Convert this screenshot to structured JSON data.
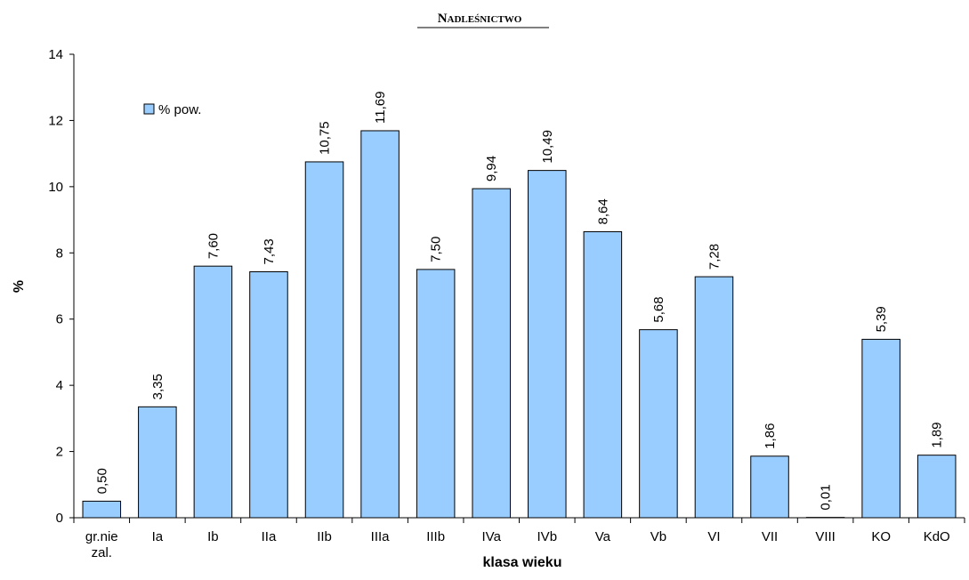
{
  "chart_data": {
    "type": "bar",
    "title": "Nadleśnictwo",
    "xlabel": "klasa wieku",
    "ylabel": "%",
    "ylim": [
      0,
      14
    ],
    "yticks": [
      "0",
      "2",
      "4",
      "6",
      "8",
      "10",
      "12",
      "14"
    ],
    "categories": [
      [
        "gr.nie",
        "zal."
      ],
      [
        "Ia"
      ],
      [
        "Ib"
      ],
      [
        "IIa"
      ],
      [
        "IIb"
      ],
      [
        "IIIa"
      ],
      [
        "IIIb"
      ],
      [
        "IVa"
      ],
      [
        "IVb"
      ],
      [
        "Va"
      ],
      [
        "Vb"
      ],
      [
        "VI"
      ],
      [
        "VII"
      ],
      [
        "VIII"
      ],
      [
        "KO"
      ],
      [
        "KdO"
      ]
    ],
    "series": [
      {
        "name": "% pow.",
        "values": [
          0.5,
          3.35,
          7.6,
          7.43,
          10.75,
          11.69,
          7.5,
          9.94,
          10.49,
          8.64,
          5.68,
          7.28,
          1.86,
          0.01,
          5.39,
          1.89
        ],
        "labels": [
          "0,50",
          "3,35",
          "7,60",
          "7,43",
          "10,75",
          "11,69",
          "7,50",
          "9,94",
          "10,49",
          "8,64",
          "5,68",
          "7,28",
          "1,86",
          "0,01",
          "5,39",
          "1,89"
        ]
      }
    ],
    "colors": {
      "bar_fill": "#99ccff",
      "bar_stroke": "#000000"
    },
    "grid": false,
    "legend": "top-left"
  }
}
